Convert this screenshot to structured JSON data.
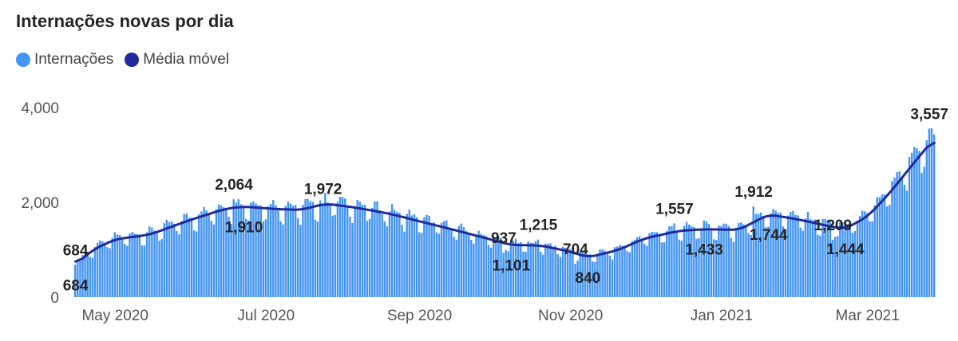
{
  "chart_data": {
    "type": "bar",
    "title": "Internações novas por dia",
    "series": [
      {
        "name": "Internações",
        "kind": "bar",
        "color": "#4294f4"
      },
      {
        "name": "Média móvel",
        "kind": "line",
        "color": "#1f2a9c"
      }
    ],
    "x_start": "2020-04-15",
    "x_end": "2021-03-28",
    "xlabel": "",
    "ylabel": "",
    "ylim": [
      0,
      4000
    ],
    "y_ticks": [
      {
        "value": 0,
        "label": "0"
      },
      {
        "value": 2000,
        "label": "2,000"
      },
      {
        "value": 4000,
        "label": "4,000"
      }
    ],
    "x_ticks": [
      {
        "date": "2020-05-01",
        "label": "May 2020"
      },
      {
        "date": "2020-07-01",
        "label": "Jul 2020"
      },
      {
        "date": "2020-09-01",
        "label": "Sep 2020"
      },
      {
        "date": "2020-11-01",
        "label": "Nov 2020"
      },
      {
        "date": "2021-01-01",
        "label": "Jan 2021"
      },
      {
        "date": "2021-03-01",
        "label": "Mar 2021"
      }
    ],
    "moving_average": [
      {
        "date": "2020-04-15",
        "value": 684
      },
      {
        "date": "2020-04-22",
        "value": 1000
      },
      {
        "date": "2020-05-01",
        "value": 1220
      },
      {
        "date": "2020-05-15",
        "value": 1320
      },
      {
        "date": "2020-06-01",
        "value": 1640
      },
      {
        "date": "2020-06-15",
        "value": 1870
      },
      {
        "date": "2020-06-22",
        "value": 1910
      },
      {
        "date": "2020-07-05",
        "value": 1860
      },
      {
        "date": "2020-07-15",
        "value": 1840
      },
      {
        "date": "2020-07-25",
        "value": 1972
      },
      {
        "date": "2020-08-05",
        "value": 1900
      },
      {
        "date": "2020-08-20",
        "value": 1760
      },
      {
        "date": "2020-09-01",
        "value": 1600
      },
      {
        "date": "2020-09-15",
        "value": 1420
      },
      {
        "date": "2020-10-01",
        "value": 1200
      },
      {
        "date": "2020-10-08",
        "value": 1101
      },
      {
        "date": "2020-10-20",
        "value": 1090
      },
      {
        "date": "2020-11-01",
        "value": 960
      },
      {
        "date": "2020-11-08",
        "value": 840
      },
      {
        "date": "2020-11-20",
        "value": 990
      },
      {
        "date": "2020-12-01",
        "value": 1240
      },
      {
        "date": "2020-12-15",
        "value": 1400
      },
      {
        "date": "2020-12-25",
        "value": 1433
      },
      {
        "date": "2021-01-08",
        "value": 1420
      },
      {
        "date": "2021-01-20",
        "value": 1744
      },
      {
        "date": "2021-02-01",
        "value": 1640
      },
      {
        "date": "2021-02-15",
        "value": 1480
      },
      {
        "date": "2021-02-20",
        "value": 1444
      },
      {
        "date": "2021-03-01",
        "value": 1700
      },
      {
        "date": "2021-03-10",
        "value": 2200
      },
      {
        "date": "2021-03-20",
        "value": 2850
      },
      {
        "date": "2021-03-28",
        "value": 3350
      }
    ],
    "data_labels": [
      {
        "date": "2020-04-15",
        "value": 684,
        "text": "684",
        "series": "Internações"
      },
      {
        "date": "2020-04-15",
        "value": 684,
        "text": "684",
        "series": "Média móvel"
      },
      {
        "date": "2020-06-18",
        "value": 2064,
        "text": "2,064",
        "series": "Internações"
      },
      {
        "date": "2020-06-22",
        "value": 1910,
        "text": "1,910",
        "series": "Média móvel"
      },
      {
        "date": "2020-07-24",
        "value": 1972,
        "text": "1,972",
        "series": "Internações"
      },
      {
        "date": "2020-10-05",
        "value": 937,
        "text": "937",
        "series": "Internações"
      },
      {
        "date": "2020-10-08",
        "value": 1101,
        "text": "1,101",
        "series": "Média móvel"
      },
      {
        "date": "2020-10-19",
        "value": 1215,
        "text": "1,215",
        "series": "Internações"
      },
      {
        "date": "2020-11-03",
        "value": 704,
        "text": "704",
        "series": "Internações"
      },
      {
        "date": "2020-11-08",
        "value": 840,
        "text": "840",
        "series": "Média móvel"
      },
      {
        "date": "2020-12-13",
        "value": 1557,
        "text": "1,557",
        "series": "Internações"
      },
      {
        "date": "2020-12-25",
        "value": 1433,
        "text": "1,433",
        "series": "Média móvel"
      },
      {
        "date": "2021-01-14",
        "value": 1912,
        "text": "1,912",
        "series": "Internações"
      },
      {
        "date": "2021-01-20",
        "value": 1744,
        "text": "1,744",
        "series": "Média móvel"
      },
      {
        "date": "2021-02-15",
        "value": 1209,
        "text": "1,209",
        "series": "Internações"
      },
      {
        "date": "2021-02-20",
        "value": 1444,
        "text": "1,444",
        "series": "Média móvel"
      },
      {
        "date": "2021-03-26",
        "value": 3557,
        "text": "3,557",
        "series": "Internações"
      }
    ],
    "grid": false,
    "legend_position": "top-left"
  }
}
